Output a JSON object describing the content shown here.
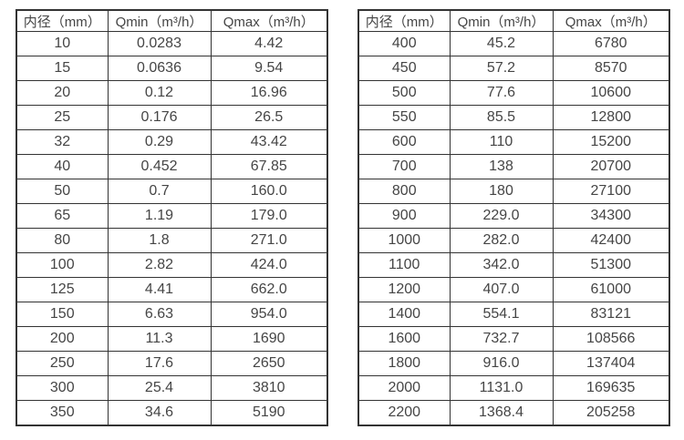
{
  "table_left": {
    "headers": [
      "内径（mm）",
      "Qmin（m³/h）",
      "Qmax（m³/h）"
    ],
    "rows": [
      [
        "10",
        "0.0283",
        "4.42"
      ],
      [
        "15",
        "0.0636",
        "9.54"
      ],
      [
        "20",
        "0.12",
        "16.96"
      ],
      [
        "25",
        "0.176",
        "26.5"
      ],
      [
        "32",
        "0.29",
        "43.42"
      ],
      [
        "40",
        "0.452",
        "67.85"
      ],
      [
        "50",
        "0.7",
        "160.0"
      ],
      [
        "65",
        "1.19",
        "179.0"
      ],
      [
        "80",
        "1.8",
        "271.0"
      ],
      [
        "100",
        "2.82",
        "424.0"
      ],
      [
        "125",
        "4.41",
        "662.0"
      ],
      [
        "150",
        "6.63",
        "954.0"
      ],
      [
        "200",
        "11.3",
        "1690"
      ],
      [
        "250",
        "17.6",
        "2650"
      ],
      [
        "300",
        "25.4",
        "3810"
      ],
      [
        "350",
        "34.6",
        "5190"
      ]
    ]
  },
  "table_right": {
    "headers": [
      "内径（mm）",
      "Qmin（m³/h）",
      "Qmax（m³/h）"
    ],
    "rows": [
      [
        "400",
        "45.2",
        "6780"
      ],
      [
        "450",
        "57.2",
        "8570"
      ],
      [
        "500",
        "77.6",
        "10600"
      ],
      [
        "550",
        "85.5",
        "12800"
      ],
      [
        "600",
        "110",
        "15200"
      ],
      [
        "700",
        "138",
        "20700"
      ],
      [
        "800",
        "180",
        "27100"
      ],
      [
        "900",
        "229.0",
        "34300"
      ],
      [
        "1000",
        "282.0",
        "42400"
      ],
      [
        "1100",
        "342.0",
        "51300"
      ],
      [
        "1200",
        "407.0",
        "61000"
      ],
      [
        "1400",
        "554.1",
        "83121"
      ],
      [
        "1600",
        "732.7",
        "108566"
      ],
      [
        "1800",
        "916.0",
        "137404"
      ],
      [
        "2000",
        "1131.0",
        "169635"
      ],
      [
        "2200",
        "1368.4",
        "205258"
      ]
    ]
  },
  "colors": {
    "border": "#333333",
    "text": "#454545",
    "background": "#ffffff"
  }
}
